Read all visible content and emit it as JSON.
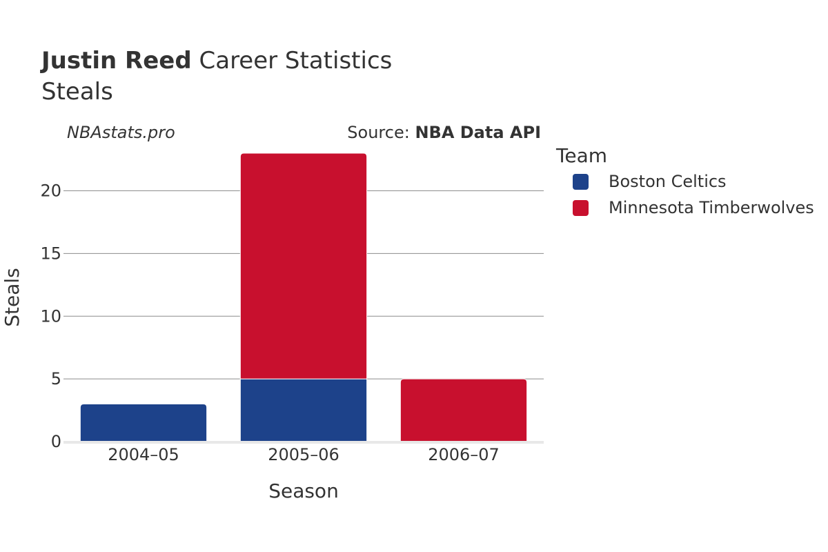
{
  "header": {
    "title_bold": "Justin Reed",
    "title_rest": " Career Statistics",
    "subtitle": "Steals"
  },
  "watermark": "NBAstats.pro",
  "source": {
    "prefix": "Source: ",
    "name": "NBA Data API"
  },
  "legend": {
    "title": "Team",
    "items": [
      {
        "label": "Boston Celtics",
        "color": "#1D428A"
      },
      {
        "label": "Minnesota Timberwolves",
        "color": "#C8102E"
      }
    ]
  },
  "chart_data": {
    "type": "bar",
    "stacked": true,
    "categories": [
      "2004–05",
      "2005–06",
      "2006–07"
    ],
    "series": [
      {
        "name": "Boston Celtics",
        "color": "#1D428A",
        "values": [
          3,
          5,
          0
        ]
      },
      {
        "name": "Minnesota Timberwolves",
        "color": "#C8102E",
        "values": [
          0,
          18,
          5
        ]
      }
    ],
    "xlabel": "Season",
    "ylabel": "Steals",
    "ylim": [
      0,
      23
    ],
    "yticks": [
      0,
      5,
      10,
      15,
      20
    ],
    "grid": true,
    "legend_position": "right"
  }
}
